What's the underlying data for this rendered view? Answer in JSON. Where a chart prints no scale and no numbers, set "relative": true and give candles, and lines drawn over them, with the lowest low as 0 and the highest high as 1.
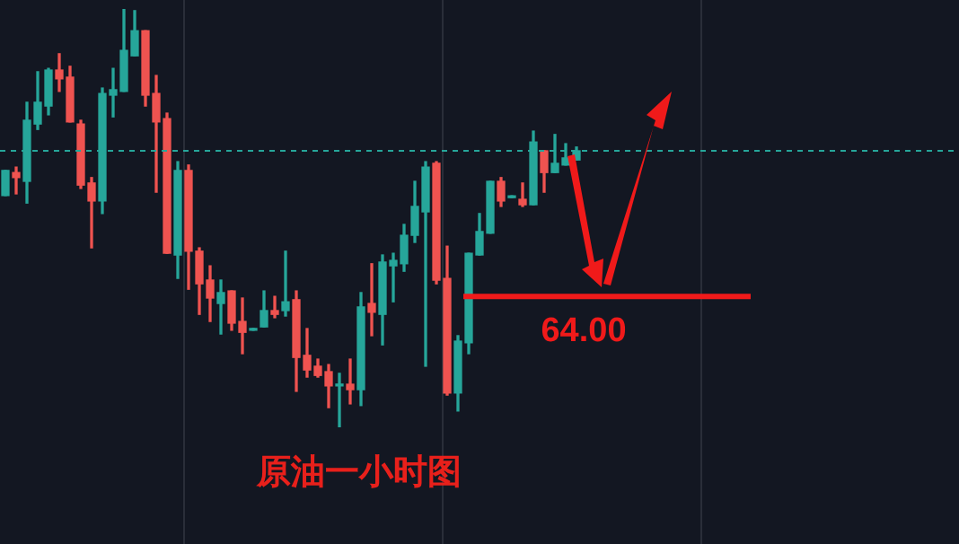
{
  "chart_data": {
    "type": "candlestick",
    "title": "原油一小时图",
    "relative": true,
    "grid": "x",
    "legend": false,
    "tick_labels": false,
    "categories": [
      null,
      null,
      null,
      null,
      null,
      null,
      null,
      null,
      null,
      null,
      null,
      null,
      null,
      null,
      null,
      null,
      null,
      null,
      null,
      null,
      null,
      null,
      null,
      null,
      null,
      null,
      null,
      null,
      null,
      null,
      null,
      null,
      null,
      null,
      null,
      null,
      null,
      null,
      null,
      null,
      null,
      null,
      null,
      null,
      null,
      null,
      null,
      null,
      null,
      null,
      null,
      null,
      null,
      null
    ],
    "ohlc": [
      [
        0.554,
        0.614,
        0.554,
        0.614
      ],
      [
        0.609,
        0.622,
        0.558,
        0.597
      ],
      [
        0.588,
        0.777,
        0.536,
        0.734
      ],
      [
        0.725,
        0.85,
        0.712,
        0.777
      ],
      [
        0.768,
        0.858,
        0.747,
        0.854
      ],
      [
        0.854,
        0.893,
        0.803,
        0.833
      ],
      [
        0.837,
        0.863,
        0.73,
        0.73
      ],
      [
        0.725,
        0.734,
        0.571,
        0.579
      ],
      [
        0.584,
        0.597,
        0.429,
        0.541
      ],
      [
        0.541,
        0.811,
        0.511,
        0.798
      ],
      [
        0.794,
        0.858,
        0.742,
        0.807
      ],
      [
        0.803,
        1.0,
        0.803,
        0.901
      ],
      [
        0.888,
        0.996,
        0.888,
        0.948
      ],
      [
        0.948,
        0.948,
        0.768,
        0.794
      ],
      [
        0.798,
        0.841,
        0.562,
        0.73
      ],
      [
        0.738,
        0.751,
        0.416,
        0.416
      ],
      [
        0.412,
        0.635,
        0.356,
        0.614
      ],
      [
        0.614,
        0.627,
        0.33,
        0.421
      ],
      [
        0.421,
        0.429,
        0.27,
        0.343
      ],
      [
        0.352,
        0.386,
        0.253,
        0.309
      ],
      [
        0.296,
        0.352,
        0.223,
        0.322
      ],
      [
        0.326,
        0.326,
        0.232,
        0.249
      ],
      [
        0.253,
        0.309,
        0.176,
        0.227
      ],
      [
        0.232,
        0.236,
        0.232,
        0.236
      ],
      [
        0.24,
        0.326,
        0.24,
        0.279
      ],
      [
        0.279,
        0.313,
        0.262,
        0.27
      ],
      [
        0.279,
        0.421,
        0.266,
        0.3
      ],
      [
        0.305,
        0.326,
        0.086,
        0.167
      ],
      [
        0.172,
        0.236,
        0.12,
        0.137
      ],
      [
        0.146,
        0.163,
        0.12,
        0.124
      ],
      [
        0.133,
        0.15,
        0.047,
        0.099
      ],
      [
        0.099,
        0.129,
        0.0,
        0.103
      ],
      [
        0.103,
        0.163,
        0.056,
        0.09
      ],
      [
        0.09,
        0.322,
        0.052,
        0.288
      ],
      [
        0.296,
        0.391,
        0.219,
        0.275
      ],
      [
        0.27,
        0.412,
        0.197,
        0.395
      ],
      [
        0.386,
        0.416,
        0.3,
        0.399
      ],
      [
        0.391,
        0.485,
        0.373,
        0.459
      ],
      [
        0.459,
        0.588,
        0.442,
        0.528
      ],
      [
        0.515,
        0.635,
        0.146,
        0.622
      ],
      [
        0.631,
        0.635,
        0.343,
        0.352
      ],
      [
        0.356,
        0.433,
        0.077,
        0.082
      ],
      [
        0.082,
        0.219,
        0.039,
        0.206
      ],
      [
        0.202,
        0.416,
        0.176,
        0.416
      ],
      [
        0.412,
        0.511,
        0.412,
        0.468
      ],
      [
        0.464,
        0.588,
        0.464,
        0.588
      ],
      [
        0.588,
        0.597,
        0.528,
        0.541
      ],
      [
        0.549,
        0.553,
        0.549,
        0.553
      ],
      [
        0.545,
        0.584,
        0.528,
        0.532
      ],
      [
        0.532,
        0.708,
        0.532,
        0.682
      ],
      [
        0.661,
        0.661,
        0.562,
        0.609
      ],
      [
        0.609,
        0.7,
        0.609,
        0.631
      ],
      [
        0.627,
        0.678,
        0.627,
        0.644
      ],
      [
        0.639,
        0.67,
        0.639,
        0.661
      ]
    ],
    "ref_lines": [
      {
        "axis": "y",
        "value": 0.661,
        "color": "#26a69a",
        "line_style": "dashed"
      },
      {
        "axis": "y",
        "value": 0.313,
        "color": "#f01a1a",
        "line_style": "solid"
      }
    ],
    "annotations": [
      "64.00"
    ]
  }
}
